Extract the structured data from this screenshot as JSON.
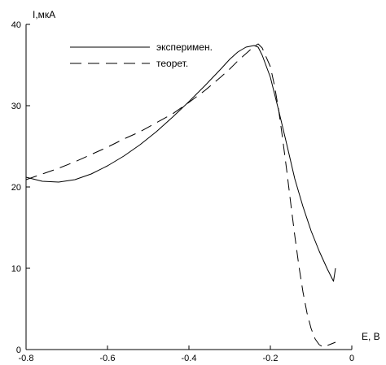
{
  "chart_data": {
    "type": "line",
    "xlabel": "E, В",
    "ylabel": "I,мкА",
    "xlim": [
      -0.8,
      0
    ],
    "ylim": [
      0,
      40
    ],
    "x_ticks": [
      -0.8,
      -0.6,
      -0.4,
      -0.2,
      0
    ],
    "x_tick_labels": [
      "-0.8",
      "-0.6",
      "-0.4",
      "-0.2",
      "0"
    ],
    "y_ticks": [
      0,
      10,
      20,
      30,
      40
    ],
    "y_tick_labels": [
      "0",
      "10",
      "20",
      "30",
      "40"
    ],
    "grid": false,
    "legend_position": "top-left",
    "series": [
      {
        "name": "эксперимен.",
        "style": "solid",
        "x": [
          -0.8,
          -0.76,
          -0.72,
          -0.68,
          -0.64,
          -0.6,
          -0.56,
          -0.52,
          -0.48,
          -0.44,
          -0.4,
          -0.36,
          -0.32,
          -0.3,
          -0.28,
          -0.26,
          -0.24,
          -0.23,
          -0.22,
          -0.2,
          -0.18,
          -0.16,
          -0.14,
          -0.12,
          -0.1,
          -0.08,
          -0.06,
          -0.045,
          -0.04
        ],
        "y": [
          21.2,
          20.7,
          20.6,
          20.9,
          21.6,
          22.6,
          23.8,
          25.2,
          26.8,
          28.6,
          30.5,
          32.5,
          34.6,
          35.7,
          36.6,
          37.2,
          37.4,
          37.2,
          36.2,
          33.5,
          29.5,
          25.3,
          21.0,
          17.6,
          14.6,
          12.1,
          9.9,
          8.4,
          10.0
        ]
      },
      {
        "name": "теорет.",
        "style": "dashed",
        "x": [
          -0.8,
          -0.76,
          -0.72,
          -0.68,
          -0.64,
          -0.6,
          -0.56,
          -0.52,
          -0.48,
          -0.44,
          -0.4,
          -0.36,
          -0.32,
          -0.3,
          -0.28,
          -0.26,
          -0.24,
          -0.23,
          -0.22,
          -0.2,
          -0.19,
          -0.18,
          -0.17,
          -0.16,
          -0.15,
          -0.14,
          -0.13,
          -0.12,
          -0.11,
          -0.1,
          -0.09,
          -0.08,
          -0.07,
          -0.06,
          -0.05,
          -0.04
        ],
        "y": [
          20.9,
          21.6,
          22.3,
          23.1,
          24.0,
          24.9,
          25.9,
          26.8,
          27.9,
          29.0,
          30.4,
          31.9,
          33.6,
          34.5,
          35.5,
          36.4,
          37.3,
          37.6,
          37.1,
          34.8,
          32.5,
          29.6,
          26.0,
          22.1,
          18.0,
          14.0,
          10.3,
          7.1,
          4.5,
          2.6,
          1.3,
          0.6,
          0.3,
          0.5,
          0.7,
          0.9
        ]
      }
    ]
  }
}
